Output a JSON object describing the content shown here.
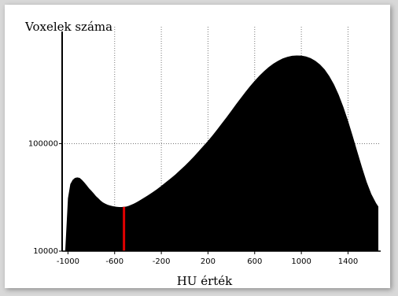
{
  "chart_data": {
    "type": "area",
    "title": "",
    "ylabel": "Voxelek száma",
    "xlabel": "HU érték",
    "x_ticks": [
      "-1000",
      "-600",
      "-200",
      "200",
      "600",
      "1000",
      "1400"
    ],
    "x_tick_values": [
      -1000,
      -600,
      -200,
      200,
      600,
      1000,
      1400
    ],
    "y_ticks": [
      "100000",
      "10000"
    ],
    "y_tick_values": [
      100000,
      10000
    ],
    "y_scale": "log",
    "xlim": [
      -1050,
      1680
    ],
    "ylim": [
      10000,
      1000000
    ],
    "grid": "dotted",
    "fill_color": "#000000",
    "marker": {
      "x": -520,
      "color": "#e00000"
    },
    "series": [
      {
        "x": [
          -1024,
          -1000,
          -980,
          -960,
          -940,
          -920,
          -900,
          -880,
          -860,
          -840,
          -820,
          -800,
          -780,
          -760,
          -740,
          -720,
          -700,
          -680,
          -660,
          -640,
          -620,
          -600,
          -580,
          -560,
          -540,
          -520,
          -500,
          -480,
          -460,
          -440,
          -420,
          -400,
          -360,
          -320,
          -280,
          -240,
          -200,
          -160,
          -120,
          -80,
          -40,
          0,
          40,
          80,
          120,
          160,
          200,
          240,
          280,
          320,
          360,
          400,
          440,
          480,
          520,
          560,
          600,
          640,
          680,
          720,
          760,
          800,
          840,
          880,
          920,
          960,
          1000,
          1040,
          1080,
          1120,
          1160,
          1200,
          1240,
          1280,
          1320,
          1360,
          1400,
          1440,
          1480,
          1520,
          1560,
          1600,
          1640,
          1660
        ],
        "values": [
          10000,
          31000,
          42000,
          46000,
          48000,
          48500,
          48000,
          46000,
          43500,
          41000,
          38500,
          36500,
          34500,
          32500,
          31000,
          29500,
          28400,
          27600,
          27000,
          26600,
          26300,
          26000,
          25800,
          25700,
          25700,
          25800,
          26000,
          26400,
          26900,
          27500,
          28200,
          29000,
          30800,
          32800,
          35000,
          37500,
          40500,
          43800,
          47500,
          51500,
          56500,
          62000,
          68500,
          76000,
          85000,
          95000,
          106000,
          120000,
          136000,
          155000,
          177000,
          202000,
          232000,
          265000,
          302000,
          342000,
          385000,
          428000,
          472000,
          515000,
          555000,
          590000,
          620000,
          643000,
          657000,
          662000,
          660000,
          648000,
          625000,
          590000,
          545000,
          490000,
          425000,
          355000,
          285000,
          220000,
          163000,
          118000,
          84000,
          60000,
          44000,
          34000,
          28000,
          26000
        ]
      }
    ]
  }
}
